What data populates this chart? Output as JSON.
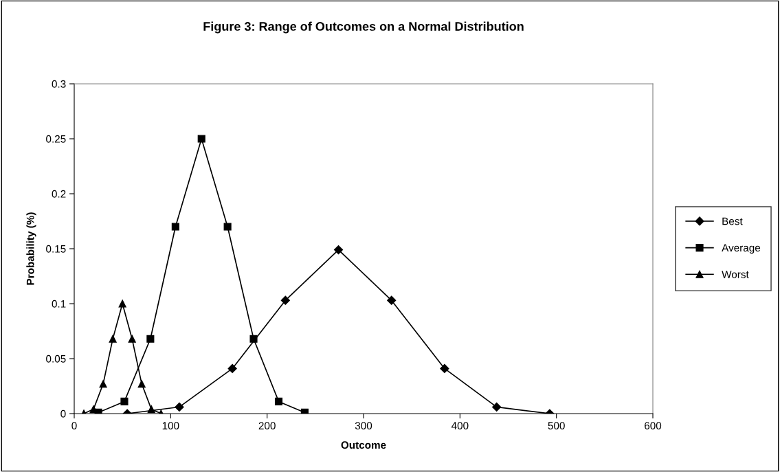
{
  "chart_data": {
    "type": "line",
    "title": "Figure 3: Range of Outcomes on a Normal Distribution",
    "xlabel": "Outcome",
    "ylabel": "Probability (%)",
    "xlim": [
      0,
      600
    ],
    "xticks": [
      0,
      100,
      200,
      300,
      400,
      500,
      600
    ],
    "ylim": [
      0,
      0.3
    ],
    "yticks": [
      0,
      0.05,
      0.1,
      0.15,
      0.2,
      0.25,
      0.3
    ],
    "grid": false,
    "legend": "right",
    "line_style": "solid",
    "series": [
      {
        "name": "Best",
        "color": "#000000",
        "marker": "diamond",
        "x": [
          55,
          109,
          164,
          219,
          274,
          329,
          384,
          438,
          493
        ],
        "values": [
          0,
          0.006,
          0.041,
          0.103,
          0.149,
          0.103,
          0.041,
          0.006,
          0
        ]
      },
      {
        "name": "Average",
        "color": "#000000",
        "marker": "square",
        "x": [
          25,
          52,
          79,
          105,
          132,
          159,
          186,
          212,
          239
        ],
        "values": [
          0.001,
          0.011,
          0.068,
          0.17,
          0.25,
          0.17,
          0.068,
          0.011,
          0.001
        ]
      },
      {
        "name": "Worst",
        "color": "#000000",
        "marker": "triangle",
        "x": [
          10,
          20,
          30,
          40,
          50,
          60,
          70,
          80,
          90
        ],
        "values": [
          0,
          0.004,
          0.027,
          0.068,
          0.1,
          0.068,
          0.027,
          0.004,
          0
        ]
      }
    ]
  }
}
